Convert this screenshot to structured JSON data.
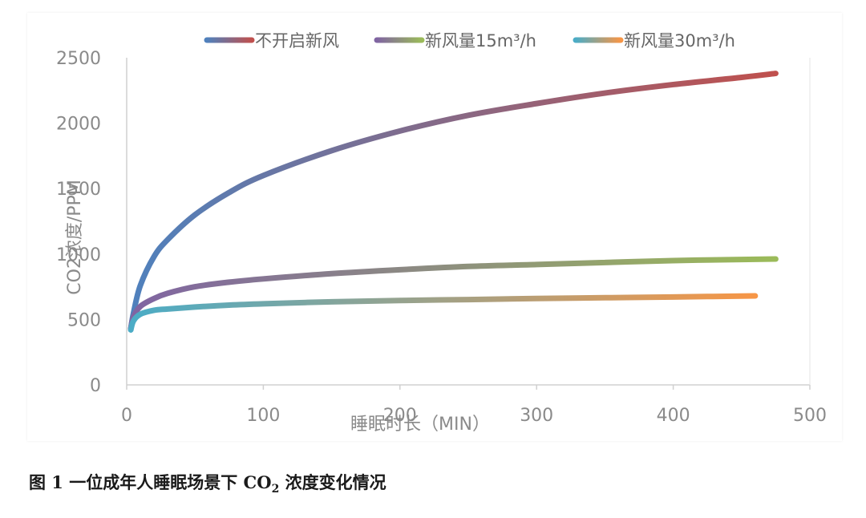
{
  "caption": {
    "prefix": "图 1 一位成年人睡眠场景下 CO",
    "subscript": "2",
    "suffix": " 浓度变化情况"
  },
  "chart_data": {
    "type": "line",
    "title": "",
    "xlabel": "睡眠时长（MIN）",
    "ylabel": "CO2浓度/PPM",
    "xlim": [
      0,
      500
    ],
    "ylim": [
      0,
      2500
    ],
    "xticks": [
      0,
      100,
      200,
      300,
      400,
      500
    ],
    "yticks": [
      0,
      500,
      1000,
      1500,
      2000,
      2500
    ],
    "grid": false,
    "legend_position": "top",
    "series": [
      {
        "name": "不开启新风",
        "color_start": "#4f81bd",
        "color_end": "#c0504d",
        "x": [
          3,
          5,
          10,
          20,
          30,
          50,
          75,
          100,
          150,
          200,
          250,
          300,
          350,
          400,
          450,
          475
        ],
        "y": [
          430,
          550,
          760,
          980,
          1110,
          1300,
          1470,
          1600,
          1790,
          1940,
          2060,
          2150,
          2230,
          2295,
          2350,
          2380
        ]
      },
      {
        "name": "新风量15m³/h",
        "color_start": "#8064a2",
        "color_end": "#9bbb59",
        "x": [
          3,
          5,
          10,
          20,
          30,
          50,
          75,
          100,
          150,
          200,
          250,
          300,
          350,
          400,
          450,
          475
        ],
        "y": [
          430,
          520,
          600,
          660,
          700,
          750,
          785,
          810,
          850,
          880,
          905,
          920,
          935,
          950,
          958,
          962
        ]
      },
      {
        "name": "新风量30m³/h",
        "color_start": "#4bacc6",
        "color_end": "#f79646",
        "x": [
          3,
          5,
          10,
          20,
          30,
          50,
          75,
          100,
          150,
          200,
          250,
          300,
          350,
          400,
          460
        ],
        "y": [
          420,
          490,
          540,
          570,
          580,
          595,
          610,
          620,
          635,
          645,
          652,
          660,
          666,
          672,
          680
        ]
      }
    ]
  }
}
